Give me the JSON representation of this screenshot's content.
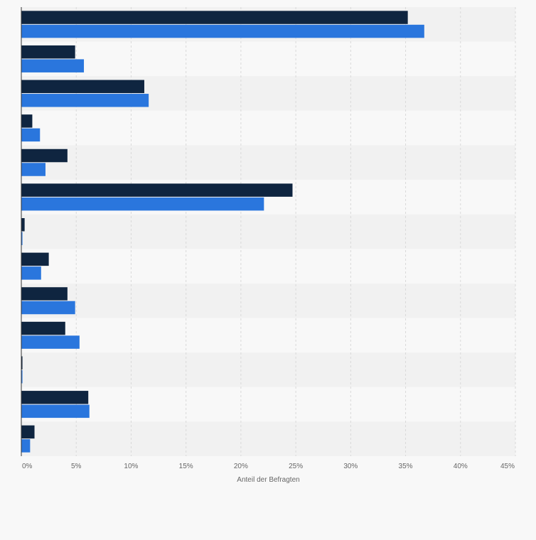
{
  "chart_data": {
    "type": "bar",
    "orientation": "horizontal",
    "xlabel": "Anteil der Befragten",
    "ylabel": "",
    "xlim": [
      0,
      45
    ],
    "grid": true,
    "x_ticks": [
      "0%",
      "5%",
      "10%",
      "15%",
      "20%",
      "25%",
      "30%",
      "35%",
      "40%",
      "45%"
    ],
    "series": [
      {
        "color": "#0f2540",
        "values": [
          35.2,
          4.9,
          11.2,
          1.0,
          4.2,
          24.7,
          0.3,
          2.5,
          4.2,
          4.0,
          0.1,
          6.1,
          1.2
        ]
      },
      {
        "color": "#2a76dd",
        "values": [
          36.7,
          5.7,
          11.6,
          1.7,
          2.2,
          22.1,
          0.1,
          1.8,
          4.9,
          5.3,
          0.1,
          6.2,
          0.8
        ]
      }
    ]
  },
  "colors": {
    "band_dark": "#f1f1f1",
    "band_light": "#f8f8f8",
    "grid": "#d9d9d9",
    "axis": "#333333"
  }
}
